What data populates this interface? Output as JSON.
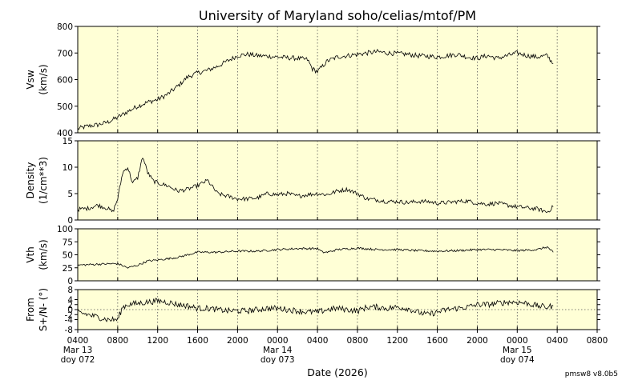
{
  "chart_data": {
    "type": "line",
    "title": "University of Maryland  soho/celias/mtof/PM",
    "xlabel": "Date (2026)",
    "version_label": "pmsw8 v8.0b5",
    "x_range_hours": [
      4,
      52
    ],
    "x_tick_labels": [
      {
        "hour": 4,
        "lines": [
          "0400",
          "Mar 13",
          "doy 072"
        ]
      },
      {
        "hour": 8,
        "lines": [
          "0800"
        ]
      },
      {
        "hour": 12,
        "lines": [
          "1200"
        ]
      },
      {
        "hour": 16,
        "lines": [
          "1600"
        ]
      },
      {
        "hour": 20,
        "lines": [
          "2000"
        ]
      },
      {
        "hour": 24,
        "lines": [
          "0000",
          "Mar 14",
          "doy 073"
        ]
      },
      {
        "hour": 28,
        "lines": [
          "0400"
        ]
      },
      {
        "hour": 32,
        "lines": [
          "0800"
        ]
      },
      {
        "hour": 36,
        "lines": [
          "1200"
        ]
      },
      {
        "hour": 40,
        "lines": [
          "1600"
        ]
      },
      {
        "hour": 44,
        "lines": [
          "2000"
        ]
      },
      {
        "hour": 48,
        "lines": [
          "0000",
          "Mar 15",
          "doy 074"
        ]
      },
      {
        "hour": 52,
        "lines": [
          "0400"
        ]
      },
      {
        "hour": 56,
        "lines": [
          "0800"
        ]
      }
    ],
    "panels": [
      {
        "ylabel": [
          "Vsw",
          "(km/s)"
        ],
        "ylim": [
          400,
          800
        ],
        "yticks": [
          400,
          500,
          600,
          700,
          800
        ],
        "zero_line": false,
        "noise": 9,
        "series": {
          "x": [
            4,
            5,
            6,
            7,
            8,
            9,
            10,
            11,
            12,
            13,
            14,
            15,
            16,
            17,
            18,
            19,
            20,
            21,
            22,
            23,
            24,
            25,
            26,
            27,
            27.5,
            28,
            28.5,
            29,
            30,
            31,
            32,
            33,
            34,
            35,
            36,
            37,
            38,
            39,
            40,
            41,
            42,
            43,
            44,
            45,
            46,
            47,
            48,
            49,
            50,
            51,
            51.6
          ],
          "y": [
            415,
            425,
            430,
            440,
            458,
            480,
            500,
            515,
            525,
            545,
            575,
            610,
            625,
            635,
            650,
            670,
            690,
            695,
            690,
            688,
            685,
            682,
            680,
            675,
            640,
            630,
            650,
            670,
            685,
            690,
            695,
            700,
            705,
            700,
            698,
            695,
            690,
            688,
            685,
            690,
            695,
            685,
            680,
            690,
            680,
            690,
            700,
            690,
            685,
            690,
            660
          ]
        }
      },
      {
        "ylabel": [
          "Density",
          "(1/cm**3)"
        ],
        "ylim": [
          0,
          15
        ],
        "yticks": [
          0,
          5,
          10,
          15
        ],
        "zero_line": false,
        "noise": 0.4,
        "series": {
          "x": [
            4,
            5,
            6,
            7,
            7.5,
            8,
            8.5,
            9,
            9.5,
            10,
            10.5,
            11,
            11.5,
            12,
            13,
            14,
            15,
            16,
            17,
            18,
            19,
            20,
            21,
            22,
            23,
            24,
            25,
            26,
            27,
            28,
            29,
            30,
            31,
            32,
            33,
            34,
            35,
            36,
            37,
            38,
            39,
            40,
            41,
            42,
            43,
            44,
            45,
            46,
            47,
            48,
            49,
            50,
            51,
            51.6
          ],
          "y": [
            2,
            2.2,
            2.8,
            2.2,
            1.5,
            4,
            9,
            10,
            7,
            8,
            12,
            9,
            7.5,
            7,
            6.5,
            5.5,
            5.8,
            6.5,
            7.5,
            5,
            4.5,
            4,
            4,
            4.2,
            5,
            4.8,
            5,
            4.5,
            4.8,
            5,
            4.8,
            5.5,
            5.8,
            5,
            4,
            3.8,
            3.5,
            3.5,
            3.3,
            3.5,
            3.5,
            3.2,
            3.3,
            3.5,
            3.6,
            3.2,
            3,
            3.2,
            2.8,
            2.5,
            2.3,
            2.1,
            1.5,
            2.5
          ]
        }
      },
      {
        "ylabel": [
          "Vth",
          "(km/s)"
        ],
        "ylim": [
          0,
          100
        ],
        "yticks": [
          0,
          25,
          50,
          75,
          100
        ],
        "zero_line": false,
        "noise": 2,
        "series": {
          "x": [
            4,
            6,
            8,
            9,
            10,
            11,
            12,
            14,
            16,
            18,
            20,
            22,
            24,
            26,
            28,
            28.5,
            29,
            30,
            32,
            34,
            36,
            38,
            40,
            42,
            44,
            46,
            48,
            50,
            51,
            51.6
          ],
          "y": [
            30,
            32,
            33,
            25,
            30,
            38,
            40,
            45,
            55,
            55,
            57,
            57,
            60,
            62,
            62,
            55,
            55,
            60,
            63,
            60,
            60,
            58,
            57,
            58,
            60,
            60,
            58,
            60,
            65,
            55
          ]
        }
      },
      {
        "ylabel": [
          "From",
          "S+/N- (°)"
        ],
        "ylim": [
          -8,
          8
        ],
        "yticks": [
          -8,
          -4,
          -2,
          0,
          2,
          4,
          8
        ],
        "zero_line": true,
        "noise": 1.2,
        "series": {
          "x": [
            4,
            5,
            6,
            7,
            8,
            8.5,
            9,
            10,
            11,
            12,
            13,
            14,
            15,
            16,
            17,
            18,
            19,
            20,
            21,
            22,
            23,
            24,
            25,
            26,
            27,
            28,
            29,
            30,
            31,
            32,
            33,
            34,
            35,
            36,
            37,
            38,
            39,
            40,
            41,
            42,
            43,
            44,
            45,
            46,
            47,
            48,
            49,
            50,
            51,
            51.6
          ],
          "y": [
            -1,
            -2,
            -3,
            -4,
            -4,
            1,
            2,
            2.5,
            3,
            3.5,
            3,
            2,
            1.5,
            0.5,
            0.5,
            0,
            -0.5,
            -0.5,
            -0.5,
            0,
            0.5,
            0.5,
            0,
            -0.5,
            -1,
            -1,
            0,
            0.5,
            0,
            -0.5,
            1,
            1,
            0.5,
            1,
            0.5,
            -1,
            -2,
            -1,
            0,
            0.5,
            1,
            2,
            2,
            2.5,
            3,
            3,
            2.5,
            1.5,
            1,
            1.5
          ]
        }
      }
    ]
  }
}
